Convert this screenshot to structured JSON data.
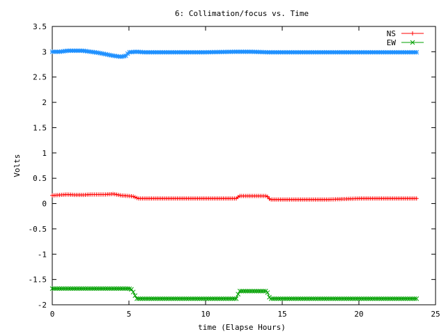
{
  "chart_data": {
    "type": "line",
    "title": "6: Collimation/focus vs. Time",
    "xlabel": "time (Elapse Hours)",
    "ylabel": "Volts",
    "xlim": [
      0,
      25
    ],
    "ylim": [
      -2,
      3.5
    ],
    "xticks": [
      "0",
      "5",
      "10",
      "15",
      "20",
      "25"
    ],
    "yticks": [
      "-2",
      "-1.5",
      "-1",
      "-0.5",
      "0",
      "0.5",
      "1",
      "1.5",
      "2",
      "2.5",
      "3",
      "3.5"
    ],
    "legend_position": "top-right",
    "grid": false,
    "series": [
      {
        "name": "NS",
        "color": "#ff0000",
        "marker": "plus",
        "x": [
          0,
          0.5,
          1,
          1.5,
          2,
          2.5,
          3,
          3.5,
          4,
          4.5,
          5,
          5.3,
          5.6,
          6,
          8,
          10,
          12,
          12.2,
          13,
          14,
          14.2,
          16,
          18,
          20,
          22,
          23.8
        ],
        "y": [
          0.16,
          0.17,
          0.18,
          0.17,
          0.17,
          0.18,
          0.18,
          0.18,
          0.19,
          0.16,
          0.15,
          0.14,
          0.1,
          0.1,
          0.1,
          0.1,
          0.1,
          0.15,
          0.15,
          0.15,
          0.08,
          0.08,
          0.08,
          0.1,
          0.1,
          0.1
        ]
      },
      {
        "name": "EW",
        "color": "#00a000",
        "marker": "cross",
        "x": [
          0,
          1,
          2,
          3,
          4,
          5,
          5.2,
          5.5,
          6,
          8,
          10,
          12,
          12.2,
          13,
          14,
          14.2,
          16,
          18,
          20,
          22,
          23.8
        ],
        "y": [
          -1.68,
          -1.68,
          -1.68,
          -1.68,
          -1.68,
          -1.68,
          -1.7,
          -1.88,
          -1.88,
          -1.88,
          -1.88,
          -1.88,
          -1.73,
          -1.73,
          -1.73,
          -1.88,
          -1.88,
          -1.88,
          -1.88,
          -1.88,
          -1.88
        ]
      },
      {
        "color": "#1e90ff",
        "marker": "star",
        "x": [
          0,
          0.5,
          1,
          1.5,
          2,
          2.5,
          3,
          3.5,
          4,
          4.5,
          4.8,
          5,
          5.5,
          6,
          8,
          10,
          12,
          12.5,
          13,
          14,
          16,
          18,
          20,
          22,
          23.8
        ],
        "y": [
          3.0,
          3.0,
          3.02,
          3.02,
          3.02,
          3.0,
          2.98,
          2.95,
          2.92,
          2.9,
          2.92,
          2.99,
          3.0,
          2.99,
          2.99,
          2.99,
          3.0,
          3.0,
          3.0,
          2.99,
          2.99,
          2.99,
          2.99,
          2.99,
          2.99
        ]
      }
    ]
  }
}
